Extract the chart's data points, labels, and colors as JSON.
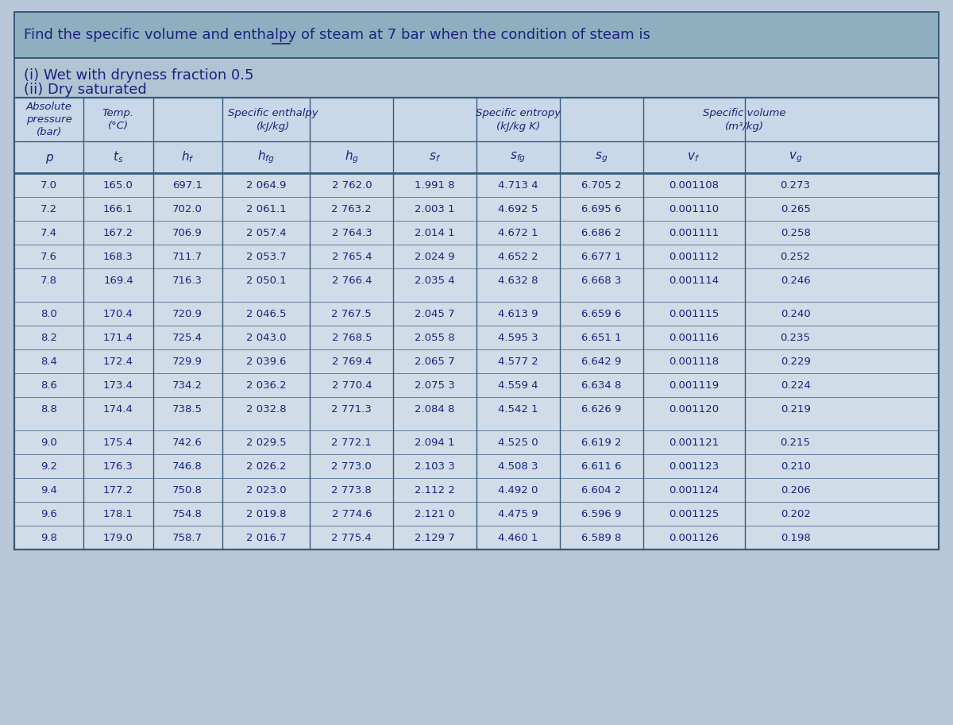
{
  "title": "Find the specific volume and enthalpy of steam at 7 bar when the condition of steam is",
  "subtitle_line1": "(i) Wet with dryness fraction 0.5",
  "subtitle_line2": "(ii) Dry saturated",
  "bg_color": "#b8c8d8",
  "table_bg": "#d0dce8",
  "header_bg": "#c8d8e8",
  "title_bg": "#8faec0",
  "subtitle_bg": "#b0c4d4",
  "col_headers_row1": [
    "Absolute\npressure\n(bar)",
    "Temp.\n(°C)",
    "Specific enthalpy\n(kJ/kg)",
    "",
    "",
    "Specific entropy\n(kJ/kg K)",
    "",
    "",
    "Specific volume\n(m³/kg)",
    ""
  ],
  "col_headers_row2": [
    "p",
    "t_s",
    "h_f",
    "h_fg",
    "h_g",
    "s_f",
    "s_fg",
    "s_g",
    "v_f",
    "v_g"
  ],
  "rows": [
    [
      "7.0",
      "165.0",
      "697.1",
      "2 064.9",
      "2 762.0",
      "1.991 8",
      "4.713 4",
      "6.705 2",
      "0.001108",
      "0.273"
    ],
    [
      "7.2",
      "166.1",
      "702.0",
      "2 061.1",
      "2 763.2",
      "2.003 1",
      "4.692 5",
      "6.695 6",
      "0.001110",
      "0.265"
    ],
    [
      "7.4",
      "167.2",
      "706.9",
      "2 057.4",
      "2 764.3",
      "2.014 1",
      "4.672 1",
      "6.686 2",
      "0.001111",
      "0.258"
    ],
    [
      "7.6",
      "168.3",
      "711.7",
      "2 053.7",
      "2 765.4",
      "2.024 9",
      "4.652 2",
      "6.677 1",
      "0.001112",
      "0.252"
    ],
    [
      "7.8",
      "169.4",
      "716.3",
      "2 050.1",
      "2 766.4",
      "2.035 4",
      "4.632 8",
      "6.668 3",
      "0.001114",
      "0.246"
    ],
    [
      "8.0",
      "170.4",
      "720.9",
      "2 046.5",
      "2 767.5",
      "2.045 7",
      "4.613 9",
      "6.659 6",
      "0.001115",
      "0.240"
    ],
    [
      "8.2",
      "171.4",
      "725.4",
      "2 043.0",
      "2 768.5",
      "2.055 8",
      "4.595 3",
      "6.651 1",
      "0.001116",
      "0.235"
    ],
    [
      "8.4",
      "172.4",
      "729.9",
      "2 039.6",
      "2 769.4",
      "2.065 7",
      "4.577 2",
      "6.642 9",
      "0.001118",
      "0.229"
    ],
    [
      "8.6",
      "173.4",
      "734.2",
      "2 036.2",
      "2 770.4",
      "2.075 3",
      "4.559 4",
      "6.634 8",
      "0.001119",
      "0.224"
    ],
    [
      "8.8",
      "174.4",
      "738.5",
      "2 032.8",
      "2 771.3",
      "2.084 8",
      "4.542 1",
      "6.626 9",
      "0.001120",
      "0.219"
    ],
    [
      "9.0",
      "175.4",
      "742.6",
      "2 029.5",
      "2 772.1",
      "2.094 1",
      "4.525 0",
      "6.619 2",
      "0.001121",
      "0.215"
    ],
    [
      "9.2",
      "176.3",
      "746.8",
      "2 026.2",
      "2 773.0",
      "2.103 3",
      "4.508 3",
      "6.611 6",
      "0.001123",
      "0.210"
    ],
    [
      "9.4",
      "177.2",
      "750.8",
      "2 023.0",
      "2 773.8",
      "2.112 2",
      "4.492 0",
      "6.604 2",
      "0.001124",
      "0.206"
    ],
    [
      "9.6",
      "178.1",
      "754.8",
      "2 019.8",
      "2 774.6",
      "2.121 0",
      "4.475 9",
      "6.596 9",
      "0.001125",
      "0.202"
    ],
    [
      "9.8",
      "179.0",
      "758.7",
      "2 016.7",
      "2 775.4",
      "2.129 7",
      "4.460 1",
      "6.589 8",
      "0.001126",
      "0.198"
    ]
  ],
  "group_breaks": [
    5,
    10
  ],
  "text_color": "#1a237e",
  "border_color": "#3a5a7a",
  "font_family": "DejaVu Sans"
}
